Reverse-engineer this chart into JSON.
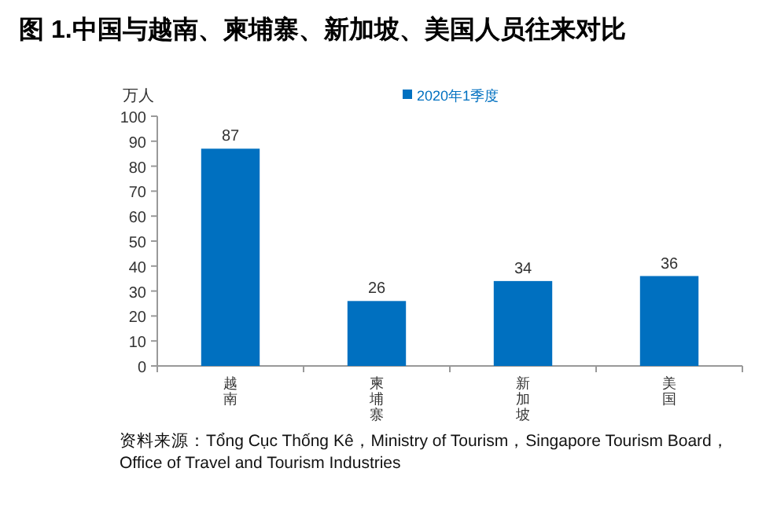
{
  "chart_data": {
    "type": "bar",
    "title": "图 1.中国与越南、柬埔寨、新加坡、美国人员往来对比",
    "ylabel": "万人",
    "categories": [
      "越南",
      "柬埔寨",
      "新加坡",
      "美国"
    ],
    "series": [
      {
        "name": "2020年1季度",
        "color": "#0070c0",
        "values": [
          87,
          26,
          34,
          36
        ]
      }
    ],
    "ylim": [
      0,
      100
    ],
    "yticks": [
      0,
      10,
      20,
      30,
      40,
      50,
      60,
      70,
      80,
      90,
      100
    ],
    "data_labels": true,
    "legend": "top",
    "grid": false,
    "annotations": [
      "资料来源：Tổng Cục Thống Kê，Ministry of Tourism，Singapore Tourism Board，Office of Travel and Tourism Industries"
    ]
  }
}
